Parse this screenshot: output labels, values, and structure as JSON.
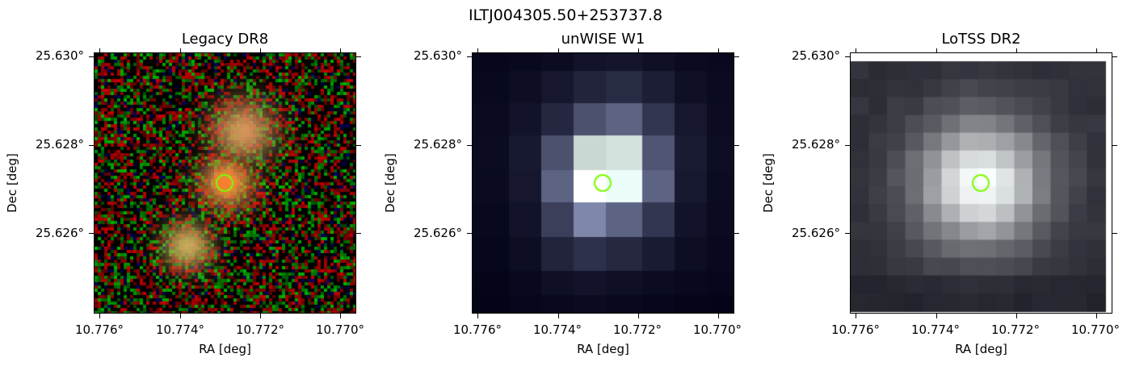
{
  "suptitle": "ILTJ004305.50+253737.8",
  "panels": [
    {
      "title": "Legacy DR8",
      "image_kind": "rgb-noise-galaxies",
      "xlabel": "RA [deg]",
      "ylabel": "Dec [deg]",
      "xticks": [
        "10.776°",
        "10.774°",
        "10.772°",
        "10.770°"
      ],
      "yticks": [
        "25.630°",
        "25.628°",
        "25.626°"
      ],
      "marker_color": "#7CFC00"
    },
    {
      "title": "unWISE W1",
      "image_kind": "grayscale-coarse",
      "xlabel": "RA [deg]",
      "ylabel": "Dec [deg]",
      "xticks": [
        "10.776°",
        "10.774°",
        "10.772°",
        "10.770°"
      ],
      "yticks": [
        "25.630°",
        "25.628°",
        "25.626°"
      ],
      "marker_color": "#7CFC00"
    },
    {
      "title": "LoTSS DR2",
      "image_kind": "grayscale-bone",
      "xlabel": "RA [deg]",
      "ylabel": "Dec [deg]",
      "xticks": [
        "10.776°",
        "10.774°",
        "10.772°",
        "10.770°"
      ],
      "yticks": [
        "25.630°",
        "25.628°",
        "25.626°"
      ],
      "marker_color": "#7CFC00"
    }
  ]
}
